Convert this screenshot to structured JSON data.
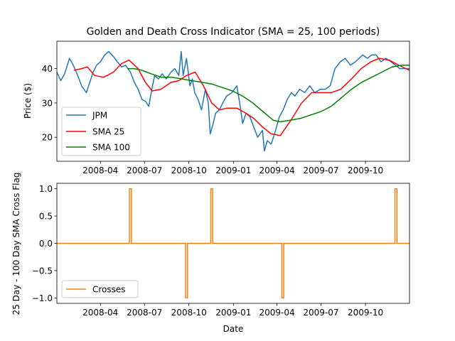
{
  "title": "Golden and Death Cross Indicator (SMA = 25, 100 periods)",
  "colors": {
    "jpm": "#1f77b4",
    "sma25": "#ff0000",
    "sma100": "#008000",
    "crosses": "#ff7f0e"
  },
  "chart_data": [
    {
      "type": "line",
      "title": "Golden and Death Cross Indicator (SMA = 25, 100 periods)",
      "xlabel": "",
      "ylabel": "Price ($)",
      "xlim": [
        "2008-01-02",
        "2009-12-31"
      ],
      "ylim": [
        13,
        48
      ],
      "xticks": [
        "2008-04-01",
        "2008-07-01",
        "2008-10-01",
        "2009-01-01",
        "2009-04-01",
        "2009-07-01",
        "2009-10-01"
      ],
      "xtick_labels": [
        "2008-04",
        "2008-07",
        "2008-10",
        "2009-01",
        "2009-04",
        "2009-07",
        "2009-10"
      ],
      "yticks": [
        20,
        30,
        40
      ],
      "legend": "lower-left",
      "series": [
        {
          "name": "JPM",
          "x": [
            "2008-01-02",
            "2008-01-10",
            "2008-01-18",
            "2008-01-28",
            "2008-02-05",
            "2008-02-14",
            "2008-02-22",
            "2008-03-03",
            "2008-03-10",
            "2008-03-17",
            "2008-03-24",
            "2008-04-01",
            "2008-04-10",
            "2008-04-18",
            "2008-04-28",
            "2008-05-06",
            "2008-05-15",
            "2008-05-23",
            "2008-06-02",
            "2008-06-10",
            "2008-06-18",
            "2008-06-26",
            "2008-07-03",
            "2008-07-10",
            "2008-07-15",
            "2008-07-22",
            "2008-07-30",
            "2008-08-07",
            "2008-08-15",
            "2008-08-25",
            "2008-09-02",
            "2008-09-10",
            "2008-09-15",
            "2008-09-19",
            "2008-09-26",
            "2008-10-03",
            "2008-10-08",
            "2008-10-13",
            "2008-10-20",
            "2008-10-27",
            "2008-11-04",
            "2008-11-10",
            "2008-11-14",
            "2008-11-20",
            "2008-11-25",
            "2008-12-03",
            "2008-12-10",
            "2008-12-18",
            "2008-12-29",
            "2009-01-08",
            "2009-01-15",
            "2009-01-20",
            "2009-01-27",
            "2009-02-04",
            "2009-02-12",
            "2009-02-20",
            "2009-03-02",
            "2009-03-06",
            "2009-03-12",
            "2009-03-20",
            "2009-03-27",
            "2009-04-06",
            "2009-04-14",
            "2009-04-22",
            "2009-05-01",
            "2009-05-08",
            "2009-05-18",
            "2009-05-28",
            "2009-06-08",
            "2009-06-18",
            "2009-06-30",
            "2009-07-10",
            "2009-07-20",
            "2009-07-30",
            "2009-08-10",
            "2009-08-20",
            "2009-08-31",
            "2009-09-10",
            "2009-09-18",
            "2009-09-25",
            "2009-10-05",
            "2009-10-14",
            "2009-10-23",
            "2009-11-02",
            "2009-11-12",
            "2009-11-23",
            "2009-12-02",
            "2009-12-11",
            "2009-12-21",
            "2009-12-31"
          ],
          "y": [
            39,
            36.5,
            38.5,
            43,
            41,
            38,
            35,
            33,
            36,
            39,
            41,
            42,
            44,
            45,
            43.5,
            42,
            40.5,
            41,
            39,
            36,
            34,
            31,
            30.5,
            29,
            33,
            38,
            37,
            38.5,
            37,
            39,
            40,
            38,
            45,
            38,
            43,
            35,
            37,
            33,
            31,
            28,
            34,
            30,
            21,
            24,
            27,
            28,
            30,
            32,
            33,
            35,
            29,
            24,
            27,
            26,
            23,
            20,
            22,
            16,
            19,
            18,
            21,
            26,
            28,
            31,
            33,
            32,
            34,
            33,
            35,
            33,
            34,
            34,
            35,
            40,
            42,
            43,
            41,
            42,
            43,
            44,
            43,
            44,
            44,
            42,
            43,
            42,
            41,
            40,
            40,
            40
          ]
        },
        {
          "name": "SMA 25",
          "x": [
            "2008-02-06",
            "2008-02-22",
            "2008-03-05",
            "2008-03-20",
            "2008-04-08",
            "2008-04-28",
            "2008-05-15",
            "2008-05-30",
            "2008-06-18",
            "2008-07-03",
            "2008-07-17",
            "2008-08-04",
            "2008-08-25",
            "2008-09-10",
            "2008-09-26",
            "2008-10-14",
            "2008-10-31",
            "2008-11-17",
            "2008-12-03",
            "2008-12-19",
            "2009-01-08",
            "2009-01-27",
            "2009-02-12",
            "2009-03-02",
            "2009-03-20",
            "2009-04-08",
            "2009-04-30",
            "2009-05-22",
            "2009-06-12",
            "2009-07-02",
            "2009-07-22",
            "2009-08-11",
            "2009-09-02",
            "2009-09-22",
            "2009-10-12",
            "2009-10-30",
            "2009-11-19",
            "2009-12-09",
            "2009-12-31"
          ],
          "y": [
            39.5,
            40,
            40.5,
            38,
            37.5,
            39,
            41.5,
            42.5,
            40,
            36,
            33.5,
            34,
            36,
            36.5,
            38,
            39,
            35,
            30,
            28,
            28.5,
            28.5,
            27,
            25.5,
            23,
            21,
            20.5,
            25,
            30,
            33,
            33,
            33,
            34,
            37,
            40,
            42,
            43,
            42.5,
            41,
            39.5
          ]
        },
        {
          "name": "SMA 100",
          "x": [
            "2008-05-27",
            "2008-06-10",
            "2008-06-26",
            "2008-07-15",
            "2008-08-05",
            "2008-08-26",
            "2008-09-16",
            "2008-10-07",
            "2008-10-28",
            "2008-11-18",
            "2008-12-09",
            "2008-12-30",
            "2009-01-20",
            "2009-02-10",
            "2009-03-03",
            "2009-03-24",
            "2009-04-08",
            "2009-04-29",
            "2009-05-20",
            "2009-06-10",
            "2009-07-01",
            "2009-07-22",
            "2009-08-12",
            "2009-09-02",
            "2009-09-23",
            "2009-10-14",
            "2009-11-04",
            "2009-11-25",
            "2009-12-16",
            "2009-12-31"
          ],
          "y": [
            40,
            40,
            39.5,
            38.5,
            37.5,
            37.5,
            37,
            36.5,
            36,
            35.5,
            34.5,
            33.5,
            32,
            30,
            27.5,
            25,
            24.5,
            25,
            25.5,
            26.5,
            27.5,
            29,
            31.5,
            34,
            36,
            37.5,
            39,
            40.5,
            41,
            41
          ]
        }
      ]
    },
    {
      "type": "line",
      "title": "",
      "xlabel": "Date",
      "ylabel": "25 Day - 100 Day SMA Cross Flag",
      "xlim": [
        "2008-01-02",
        "2009-12-31"
      ],
      "ylim": [
        -1.1,
        1.1
      ],
      "xticks": [
        "2008-04-01",
        "2008-07-01",
        "2008-10-01",
        "2009-01-01",
        "2009-04-01",
        "2009-07-01",
        "2009-10-01"
      ],
      "xtick_labels": [
        "2008-04",
        "2008-07",
        "2008-10",
        "2009-01",
        "2009-04",
        "2009-07",
        "2009-10"
      ],
      "yticks": [
        -1.0,
        -0.5,
        0.0,
        0.5,
        1.0
      ],
      "ytick_labels": [
        "−1.0",
        "−0.5",
        "0.0",
        "0.5",
        "1.0"
      ],
      "legend": "lower-left",
      "series": [
        {
          "name": "Crosses",
          "events": [
            {
              "date": "2008-06-02",
              "value": 1
            },
            {
              "date": "2008-09-26",
              "value": -1
            },
            {
              "date": "2008-11-17",
              "value": 1
            },
            {
              "date": "2009-04-13",
              "value": -1
            },
            {
              "date": "2009-12-03",
              "value": 1
            }
          ]
        }
      ]
    }
  ]
}
